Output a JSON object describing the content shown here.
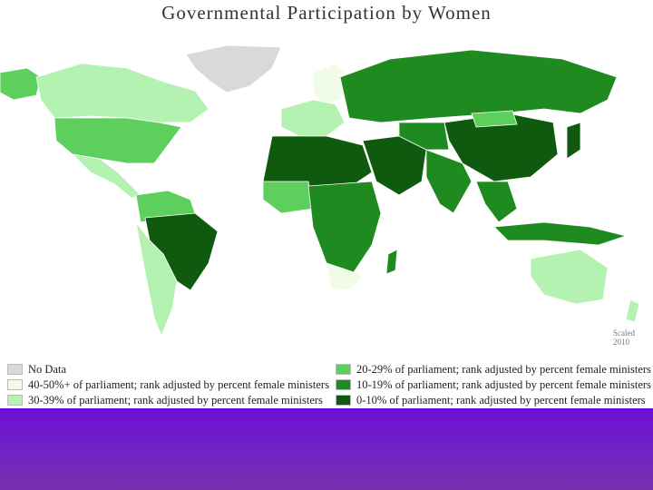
{
  "title": "Governmental Participation by Women",
  "note": "Scaled 2010",
  "legend": [
    {
      "label": "No Data",
      "color": "#d9d9d9"
    },
    {
      "label": "40-50%+ of parliament; rank adjusted by percent female ministers",
      "color": "#f0fce8"
    },
    {
      "label": "30-39% of parliament; rank adjusted by percent female ministers",
      "color": "#b3f2b0"
    },
    {
      "label": "20-29% of parliament; rank adjusted by percent female ministers",
      "color": "#5ccf5c"
    },
    {
      "label": "10-19% of parliament; rank adjusted by percent female ministers",
      "color": "#1f8a1f"
    },
    {
      "label": "0-10% of parliament; rank adjusted by percent female ministers",
      "color": "#0f5a0f"
    }
  ]
}
